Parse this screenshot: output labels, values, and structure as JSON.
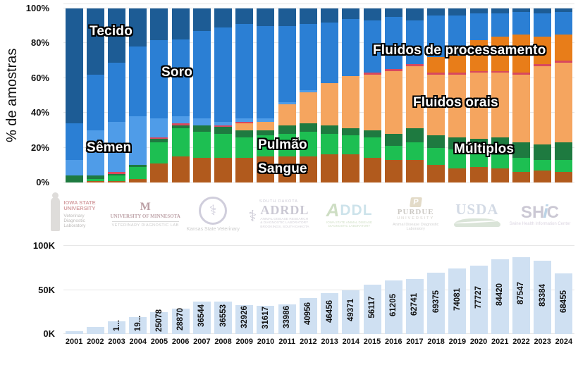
{
  "top_chart": {
    "ylabel": "% de amostras",
    "y_ticks": [
      "100%",
      "80%",
      "60%",
      "40%",
      "20%",
      "0%"
    ],
    "labels": {
      "tecido": "Tecido",
      "soro": "Soro",
      "semen": "Sêmen",
      "pulmao": "Pulmão",
      "sangue": "Sangue",
      "fluidos_processamento": "Fluidos de processamento",
      "fluidos_orais": "Fluidos orais",
      "multiplos": "Múltiplos"
    }
  },
  "bottom_chart": {
    "y_ticks": [
      "100K",
      "50K",
      "0K"
    ]
  },
  "chart_data": [
    {
      "type": "bar",
      "stacked": true,
      "title": "",
      "ylabel": "% de amostras",
      "ylim": [
        0,
        100
      ],
      "grid": true,
      "legend": "labels drawn on top of bars",
      "categories": [
        "2001",
        "2002",
        "2003",
        "2004",
        "2005",
        "2006",
        "2007",
        "2008",
        "2009",
        "2010",
        "2011",
        "2012",
        "2013",
        "2014",
        "2015",
        "2016",
        "2017",
        "2018",
        "2019",
        "2020",
        "2021",
        "2022",
        "2023",
        "2024"
      ],
      "series": [
        {
          "name": "Sangue",
          "color": "#b15a1d",
          "values": [
            0,
            1,
            1,
            2,
            11,
            15,
            14,
            14,
            14,
            15,
            15,
            15,
            16,
            16,
            14,
            13,
            13,
            10,
            8,
            9,
            8,
            6,
            7,
            6
          ]
        },
        {
          "name": "Pulmão",
          "color": "#1dbf52",
          "values": [
            0,
            1,
            3,
            7,
            12,
            16,
            15,
            14,
            12,
            12,
            13,
            14,
            12,
            11,
            12,
            8,
            10,
            10,
            11,
            9,
            8,
            8,
            6,
            7
          ]
        },
        {
          "name": "Múltiplos",
          "color": "#1e7a40",
          "values": [
            4,
            2,
            1,
            1,
            2,
            2,
            4,
            4,
            4,
            3,
            5,
            5,
            5,
            4,
            4,
            7,
            8,
            7,
            7,
            7,
            10,
            9,
            9,
            10
          ]
        },
        {
          "name": "Fluidos orais",
          "color": "#f5a55f",
          "values": [
            0,
            0,
            0,
            0,
            0,
            0,
            0,
            0,
            4,
            5,
            12,
            18,
            24,
            30,
            32,
            36,
            36,
            35,
            36,
            38,
            37,
            39,
            45,
            46
          ]
        },
        {
          "name": "",
          "color": "#d8485e",
          "values": [
            0,
            0,
            1,
            0,
            1,
            1,
            0,
            1,
            1,
            0,
            0,
            0,
            0,
            0,
            1,
            1,
            1,
            1,
            1,
            1,
            1,
            1,
            1,
            1
          ]
        },
        {
          "name": "Fluidos de processamento",
          "color": "#e87d19",
          "values": [
            0,
            0,
            0,
            0,
            0,
            0,
            0,
            0,
            0,
            0,
            0,
            0,
            0,
            0,
            0,
            0,
            0,
            9,
            10,
            18,
            20,
            22,
            16,
            15
          ]
        },
        {
          "name": "Sêmen",
          "color": "#4f9ce8",
          "values": [
            9,
            26,
            29,
            28,
            11,
            4,
            4,
            2,
            2,
            2,
            1,
            1,
            0,
            0,
            0,
            0,
            0,
            0,
            0,
            0,
            0,
            0,
            0,
            0
          ]
        },
        {
          "name": "Soro",
          "color": "#2b7fd4",
          "values": [
            21,
            32,
            34,
            40,
            45,
            44,
            50,
            54,
            54,
            53,
            44,
            38,
            35,
            33,
            30,
            30,
            25,
            24,
            23,
            15,
            13,
            13,
            13,
            13
          ]
        },
        {
          "name": "Tecido",
          "color": "#1d5c95",
          "values": [
            66,
            38,
            31,
            22,
            18,
            18,
            13,
            11,
            9,
            10,
            10,
            9,
            8,
            6,
            7,
            5,
            7,
            4,
            4,
            3,
            3,
            2,
            3,
            2
          ]
        }
      ]
    },
    {
      "type": "bar",
      "title": "",
      "ylim": [
        0,
        100000
      ],
      "y_ticks": [
        "0K",
        "50K",
        "100K"
      ],
      "bar_color": "#cfe0f2",
      "categories": [
        "2001",
        "2002",
        "2003",
        "2004",
        "2005",
        "2006",
        "2007",
        "2008",
        "2009",
        "2010",
        "2011",
        "2012",
        "2013",
        "2014",
        "2015",
        "2016",
        "2017",
        "2018",
        "2019",
        "2020",
        "2021",
        "2022",
        "2023",
        "2024"
      ],
      "values": [
        3000,
        8000,
        14500,
        19500,
        25078,
        28870,
        36544,
        36553,
        32926,
        31617,
        33986,
        40956,
        46456,
        49371,
        56117,
        61205,
        62741,
        69375,
        74081,
        77727,
        84420,
        87547,
        83384,
        68455
      ],
      "bar_labels": [
        "",
        "",
        "1...",
        "19...",
        "25078",
        "28870",
        "36544",
        "36553",
        "32926",
        "31617",
        "33986",
        "40956",
        "46456",
        "49371",
        "56117",
        "61205",
        "62741",
        "69375",
        "74081",
        "77727",
        "84420",
        "87547",
        "83384",
        "68455"
      ]
    }
  ],
  "logos": [
    {
      "id": "iowa-state-vdl",
      "line1": "IOWA STATE",
      "line2": "UNIVERSITY",
      "line3": "Veterinary",
      "line4": "Diagnostic",
      "line5": "Laboratory"
    },
    {
      "id": "university-of-minnesota",
      "mark": "M",
      "line1": "UNIVERSITY OF MINNESOTA",
      "line2": "VETERINARY DIAGNOSTIC LAB"
    },
    {
      "id": "kansas-state-veterinary",
      "mark": "⚕",
      "line1": "Kansas State Veterinary"
    },
    {
      "id": "south-dakota-adrdl",
      "mark": "⚕",
      "line0": "SOUTH DAKOTA",
      "line1": "ADRDL",
      "line2": "ANIMAL DISEASE RESEARCH",
      "line3": "& DIAGNOSTIC LABORATORY",
      "line4": "BROOKINGS, SOUTH DAKOTA"
    },
    {
      "id": "addl",
      "a": "A",
      "rest": "DDL",
      "line1": "IOWA STATE ANIMAL DISEASE DIAGNOSTIC LABORATORY"
    },
    {
      "id": "purdue-addl",
      "mark": "P",
      "line1": "PURDUE",
      "line2": "UNIVERSITY",
      "line3": "Animal Disease Diagnostic Laboratory"
    },
    {
      "id": "usda",
      "line1": "USDA"
    },
    {
      "id": "shic",
      "sh": "SH",
      "i": "i",
      "c": "C",
      "line1": "Swine Health Information Center"
    }
  ]
}
